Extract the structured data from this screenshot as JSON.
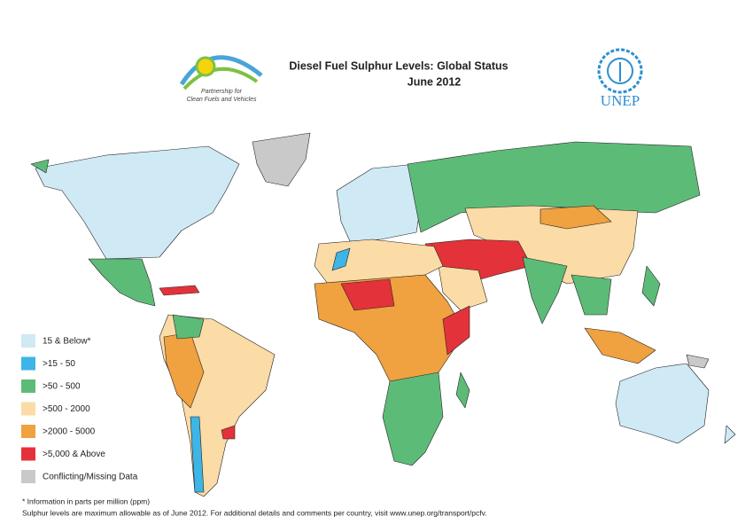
{
  "header": {
    "title": "Diesel Fuel Sulphur Levels: Global Status",
    "subtitle": "June 2012"
  },
  "logos": {
    "partnership": [
      "Partnership for",
      "Clean Fuels and Vehicles"
    ],
    "unep": "UNEP"
  },
  "legend": {
    "items": [
      {
        "label": "15 & Below*",
        "color": "#cfe9f5"
      },
      {
        "label": ">15 - 50",
        "color": "#3db5e6"
      },
      {
        "label": ">50 - 500",
        "color": "#5dbb78"
      },
      {
        "label": ">500 - 2000",
        "color": "#fbdba6"
      },
      {
        "label": ">2000 - 5000",
        "color": "#f0a140"
      },
      {
        "label": ">5,000 & Above",
        "color": "#e4323a"
      },
      {
        "label": "Conflicting/Missing Data",
        "color": "#c9c9c9"
      }
    ]
  },
  "footnotes": [
    "* Information in parts per million (ppm)",
    "Sulphur levels are maximum allowable as of  June 2012.  For additional details and comments per country, visit www.unep.org/transport/pcfv."
  ]
}
